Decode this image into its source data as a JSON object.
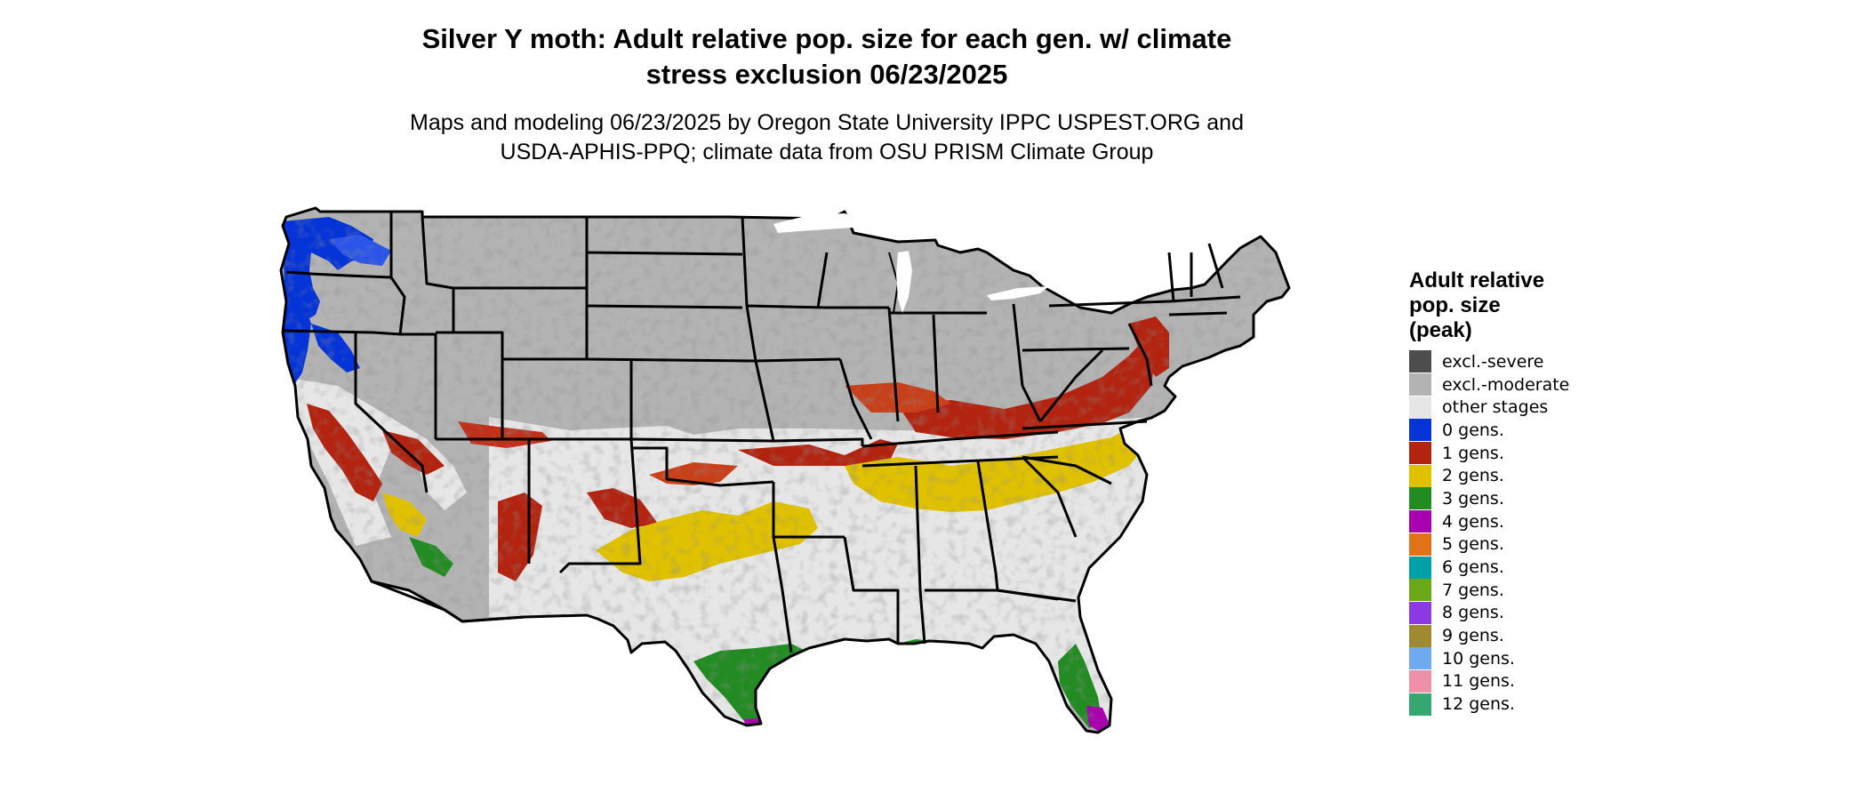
{
  "title": {
    "line1": "Silver Y moth: Adult relative pop. size for each gen. w/ climate",
    "line2": "stress exclusion 06/23/2025"
  },
  "subtitle": {
    "line1": "Maps and modeling 06/23/2025 by Oregon State University IPPC USPEST.ORG and",
    "line2": "USDA-APHIS-PPQ; climate data from OSU PRISM Climate Group"
  },
  "legend": {
    "title_line1": "Adult relative",
    "title_line2": "pop. size",
    "title_line3": "(peak)",
    "items": [
      {
        "label": "excl.-severe",
        "color": "#4d4d4d"
      },
      {
        "label": "excl.-moderate",
        "color": "#b3b3b3"
      },
      {
        "label": "other stages",
        "color": "#e6e6e6"
      },
      {
        "label": "0 gens.",
        "color": "#0433d8"
      },
      {
        "label": "1 gens.",
        "color": "#b22410"
      },
      {
        "label": "2 gens.",
        "color": "#e0c100"
      },
      {
        "label": "3 gens.",
        "color": "#228b22"
      },
      {
        "label": "4 gens.",
        "color": "#a800b0"
      },
      {
        "label": "5 gens.",
        "color": "#e07318"
      },
      {
        "label": "6 gens.",
        "color": "#00a0a8"
      },
      {
        "label": "7 gens.",
        "color": "#6aa818"
      },
      {
        "label": "8 gens.",
        "color": "#8a3ae0"
      },
      {
        "label": "9 gens.",
        "color": "#a08a30"
      },
      {
        "label": "10 gens.",
        "color": "#70aaee"
      },
      {
        "label": "11 gens.",
        "color": "#ee90a8"
      },
      {
        "label": "12 gens.",
        "color": "#34a870"
      }
    ]
  }
}
